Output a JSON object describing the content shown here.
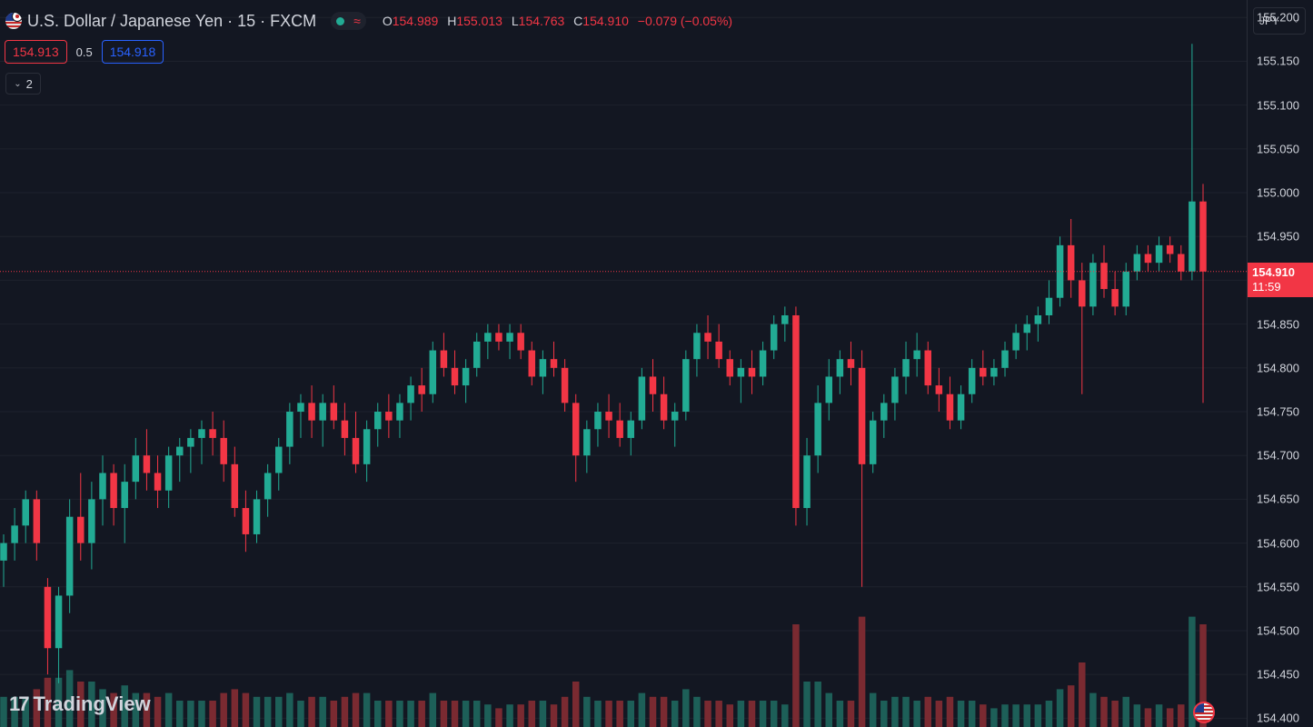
{
  "header": {
    "symbol_title": "U.S. Dollar / Japanese Yen · 15 · FXCM",
    "status_wave": "≈",
    "ohlc": {
      "o_label": "O",
      "o": "154.989",
      "h_label": "H",
      "h": "155.013",
      "l_label": "L",
      "l": "154.763",
      "c_label": "C",
      "c": "154.910",
      "change": "−0.079 (−0.05%)"
    }
  },
  "trade": {
    "sell_price": "154.913",
    "spread": "0.5",
    "buy_price": "154.918"
  },
  "indicators": {
    "count": "2"
  },
  "price_axis": {
    "currency": "JPY",
    "ticks": [
      "155.200",
      "155.150",
      "155.100",
      "155.050",
      "155.000",
      "154.950",
      "154.900",
      "154.850",
      "154.800",
      "154.750",
      "154.700",
      "154.650",
      "154.600",
      "154.550",
      "154.500",
      "154.450",
      "154.400"
    ],
    "last_price": "154.910",
    "countdown": "11:59"
  },
  "watermark": {
    "logo": "17",
    "text": "TradingView"
  },
  "colors": {
    "up": "#22ab94",
    "down": "#f23645",
    "background": "#131722",
    "grid": "#1e222d",
    "up_volume": "#1d5f58",
    "down_volume": "#7a2a31"
  },
  "chart_data": {
    "type": "candlestick",
    "symbol": "USDJPY",
    "interval": "15",
    "y_range": [
      154.39,
      155.22
    ],
    "last_price": 154.91,
    "grid": true,
    "candles": [
      [
        154.58,
        154.61,
        154.55,
        154.6
      ],
      [
        154.6,
        154.64,
        154.58,
        154.62
      ],
      [
        154.62,
        154.66,
        154.6,
        154.65
      ],
      [
        154.65,
        154.66,
        154.58,
        154.6
      ],
      [
        154.55,
        154.56,
        154.45,
        154.48
      ],
      [
        154.48,
        154.55,
        154.44,
        154.54
      ],
      [
        154.54,
        154.65,
        154.52,
        154.63
      ],
      [
        154.63,
        154.68,
        154.58,
        154.6
      ],
      [
        154.6,
        154.67,
        154.57,
        154.65
      ],
      [
        154.65,
        154.7,
        154.62,
        154.68
      ],
      [
        154.68,
        154.69,
        154.62,
        154.64
      ],
      [
        154.64,
        154.69,
        154.6,
        154.67
      ],
      [
        154.67,
        154.72,
        154.65,
        154.7
      ],
      [
        154.7,
        154.73,
        154.66,
        154.68
      ],
      [
        154.68,
        154.7,
        154.64,
        154.66
      ],
      [
        154.66,
        154.71,
        154.64,
        154.7
      ],
      [
        154.7,
        154.72,
        154.67,
        154.71
      ],
      [
        154.71,
        154.73,
        154.68,
        154.72
      ],
      [
        154.72,
        154.74,
        154.69,
        154.73
      ],
      [
        154.73,
        154.75,
        154.7,
        154.72
      ],
      [
        154.72,
        154.74,
        154.67,
        154.69
      ],
      [
        154.69,
        154.71,
        154.63,
        154.64
      ],
      [
        154.64,
        154.66,
        154.59,
        154.61
      ],
      [
        154.61,
        154.66,
        154.6,
        154.65
      ],
      [
        154.65,
        154.69,
        154.63,
        154.68
      ],
      [
        154.68,
        154.72,
        154.66,
        154.71
      ],
      [
        154.71,
        154.76,
        154.69,
        154.75
      ],
      [
        154.75,
        154.77,
        154.72,
        154.76
      ],
      [
        154.76,
        154.78,
        154.72,
        154.74
      ],
      [
        154.74,
        154.77,
        154.71,
        154.76
      ],
      [
        154.76,
        154.78,
        154.73,
        154.74
      ],
      [
        154.74,
        154.76,
        154.7,
        154.72
      ],
      [
        154.72,
        154.75,
        154.68,
        154.69
      ],
      [
        154.69,
        154.74,
        154.67,
        154.73
      ],
      [
        154.73,
        154.76,
        154.71,
        154.75
      ],
      [
        154.75,
        154.77,
        154.72,
        154.74
      ],
      [
        154.74,
        154.77,
        154.72,
        154.76
      ],
      [
        154.76,
        154.79,
        154.74,
        154.78
      ],
      [
        154.78,
        154.8,
        154.75,
        154.77
      ],
      [
        154.77,
        154.83,
        154.76,
        154.82
      ],
      [
        154.82,
        154.84,
        154.79,
        154.8
      ],
      [
        154.8,
        154.82,
        154.77,
        154.78
      ],
      [
        154.78,
        154.81,
        154.76,
        154.8
      ],
      [
        154.8,
        154.84,
        154.79,
        154.83
      ],
      [
        154.83,
        154.85,
        154.81,
        154.84
      ],
      [
        154.84,
        154.85,
        154.82,
        154.83
      ],
      [
        154.83,
        154.85,
        154.81,
        154.84
      ],
      [
        154.84,
        154.85,
        154.81,
        154.82
      ],
      [
        154.82,
        154.83,
        154.78,
        154.79
      ],
      [
        154.79,
        154.82,
        154.77,
        154.81
      ],
      [
        154.81,
        154.83,
        154.79,
        154.8
      ],
      [
        154.8,
        154.81,
        154.75,
        154.76
      ],
      [
        154.76,
        154.77,
        154.67,
        154.7
      ],
      [
        154.7,
        154.74,
        154.68,
        154.73
      ],
      [
        154.73,
        154.76,
        154.71,
        154.75
      ],
      [
        154.75,
        154.77,
        154.72,
        154.74
      ],
      [
        154.74,
        154.76,
        154.71,
        154.72
      ],
      [
        154.72,
        154.75,
        154.7,
        154.74
      ],
      [
        154.74,
        154.8,
        154.73,
        154.79
      ],
      [
        154.79,
        154.81,
        154.75,
        154.77
      ],
      [
        154.77,
        154.79,
        154.73,
        154.74
      ],
      [
        154.74,
        154.76,
        154.71,
        154.75
      ],
      [
        154.75,
        154.82,
        154.74,
        154.81
      ],
      [
        154.81,
        154.85,
        154.79,
        154.84
      ],
      [
        154.84,
        154.86,
        154.81,
        154.83
      ],
      [
        154.83,
        154.85,
        154.8,
        154.81
      ],
      [
        154.81,
        154.82,
        154.78,
        154.79
      ],
      [
        154.79,
        154.81,
        154.76,
        154.8
      ],
      [
        154.8,
        154.82,
        154.77,
        154.79
      ],
      [
        154.79,
        154.83,
        154.78,
        154.82
      ],
      [
        154.82,
        154.86,
        154.81,
        154.85
      ],
      [
        154.85,
        154.87,
        154.83,
        154.86
      ],
      [
        154.86,
        154.87,
        154.62,
        154.64
      ],
      [
        154.64,
        154.72,
        154.62,
        154.7
      ],
      [
        154.7,
        154.78,
        154.68,
        154.76
      ],
      [
        154.76,
        154.81,
        154.74,
        154.79
      ],
      [
        154.79,
        154.82,
        154.77,
        154.81
      ],
      [
        154.81,
        154.83,
        154.78,
        154.8
      ],
      [
        154.8,
        154.82,
        154.55,
        154.69
      ],
      [
        154.69,
        154.75,
        154.68,
        154.74
      ],
      [
        154.74,
        154.77,
        154.72,
        154.76
      ],
      [
        154.76,
        154.8,
        154.74,
        154.79
      ],
      [
        154.79,
        154.83,
        154.77,
        154.81
      ],
      [
        154.81,
        154.84,
        154.79,
        154.82
      ],
      [
        154.82,
        154.83,
        154.77,
        154.78
      ],
      [
        154.78,
        154.8,
        154.75,
        154.77
      ],
      [
        154.77,
        154.79,
        154.73,
        154.74
      ],
      [
        154.74,
        154.78,
        154.73,
        154.77
      ],
      [
        154.77,
        154.81,
        154.76,
        154.8
      ],
      [
        154.8,
        154.82,
        154.78,
        154.79
      ],
      [
        154.79,
        154.81,
        154.78,
        154.8
      ],
      [
        154.8,
        154.83,
        154.79,
        154.82
      ],
      [
        154.82,
        154.85,
        154.81,
        154.84
      ],
      [
        154.84,
        154.86,
        154.82,
        154.85
      ],
      [
        154.85,
        154.87,
        154.83,
        154.86
      ],
      [
        154.86,
        154.9,
        154.85,
        154.88
      ],
      [
        154.88,
        154.95,
        154.87,
        154.94
      ],
      [
        154.94,
        154.97,
        154.88,
        154.9
      ],
      [
        154.9,
        154.92,
        154.77,
        154.87
      ],
      [
        154.87,
        154.93,
        154.86,
        154.92
      ],
      [
        154.92,
        154.94,
        154.88,
        154.89
      ],
      [
        154.89,
        154.91,
        154.86,
        154.87
      ],
      [
        154.87,
        154.92,
        154.86,
        154.91
      ],
      [
        154.91,
        154.94,
        154.9,
        154.93
      ],
      [
        154.93,
        154.94,
        154.91,
        154.92
      ],
      [
        154.92,
        154.95,
        154.91,
        154.94
      ],
      [
        154.94,
        154.95,
        154.92,
        154.93
      ],
      [
        154.93,
        154.94,
        154.9,
        154.91
      ],
      [
        154.91,
        155.17,
        154.9,
        154.99
      ],
      [
        154.99,
        155.01,
        154.76,
        154.91
      ]
    ]
  }
}
